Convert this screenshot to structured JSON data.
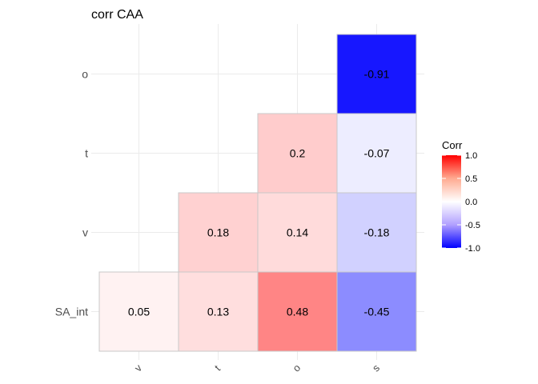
{
  "chart_data": {
    "type": "heatmap",
    "title": "corr CAA",
    "x_categories": [
      "v",
      "t",
      "o",
      "s"
    ],
    "y_categories": [
      "SA_int",
      "v",
      "t",
      "o"
    ],
    "cells": [
      {
        "x": "v",
        "y": "SA_int",
        "value": 0.05,
        "label": "0.05"
      },
      {
        "x": "t",
        "y": "SA_int",
        "value": 0.13,
        "label": "0.13"
      },
      {
        "x": "o",
        "y": "SA_int",
        "value": 0.48,
        "label": "0.48"
      },
      {
        "x": "s",
        "y": "SA_int",
        "value": -0.45,
        "label": "-0.45"
      },
      {
        "x": "t",
        "y": "v",
        "value": 0.18,
        "label": "0.18"
      },
      {
        "x": "o",
        "y": "v",
        "value": 0.14,
        "label": "0.14"
      },
      {
        "x": "s",
        "y": "v",
        "value": -0.18,
        "label": "-0.18"
      },
      {
        "x": "o",
        "y": "t",
        "value": 0.2,
        "label": "0.2"
      },
      {
        "x": "s",
        "y": "t",
        "value": -0.07,
        "label": "-0.07"
      },
      {
        "x": "s",
        "y": "o",
        "value": -0.91,
        "label": "-0.91"
      }
    ],
    "legend": {
      "title": "Corr",
      "ticks": [
        "1.0",
        "0.5",
        "0.0",
        "-0.5",
        "-1.0"
      ],
      "tick_values": [
        1.0,
        0.5,
        0.0,
        -0.5,
        -1.0
      ],
      "range": [
        -1,
        1
      ],
      "placement": "right"
    },
    "colors": {
      "low": "#0000ff",
      "mid": "#ffffff",
      "high": "#ff0000"
    },
    "grid": true
  }
}
